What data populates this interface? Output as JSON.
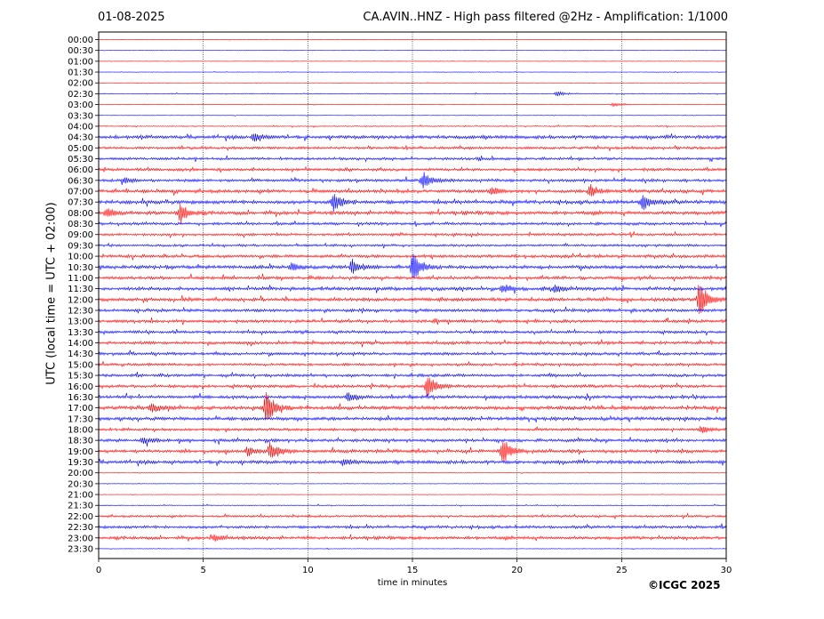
{
  "header": {
    "date": "01-08-2025",
    "station_title": "CA.AVIN..HNZ - High pass filtered @2Hz - Amplification: 1/1000"
  },
  "footer": {
    "copyright": "©ICGC 2025"
  },
  "chart_data": {
    "type": "line",
    "title": "CA.AVIN..HNZ - High pass filtered @2Hz - Amplification: 1/1000",
    "xlabel": "time in minutes",
    "ylabel": "UTC (local time = UTC + 02:00)",
    "xlim": [
      0,
      30
    ],
    "x_ticks": [
      0,
      5,
      10,
      15,
      20,
      25,
      30
    ],
    "vertical_grid": [
      5,
      10,
      15,
      20,
      25
    ],
    "trace_colors": [
      "#ff0000",
      "#0000ff"
    ],
    "rows": [
      "00:00",
      "00:30",
      "01:00",
      "01:30",
      "02:00",
      "02:30",
      "03:00",
      "03:30",
      "04:00",
      "04:30",
      "05:00",
      "05:30",
      "06:00",
      "06:30",
      "07:00",
      "07:30",
      "08:00",
      "08:30",
      "09:00",
      "09:30",
      "10:00",
      "10:30",
      "11:00",
      "11:30",
      "12:00",
      "12:30",
      "13:00",
      "13:30",
      "14:00",
      "14:30",
      "15:00",
      "15:30",
      "16:00",
      "16:30",
      "17:00",
      "17:30",
      "18:00",
      "18:30",
      "19:00",
      "19:30",
      "20:00",
      "20:30",
      "21:00",
      "21:30",
      "22:00",
      "22:30",
      "23:00",
      "23:30"
    ],
    "noise_level": [
      0.2,
      0.2,
      0.2,
      0.2,
      0.2,
      0.4,
      0.3,
      0.2,
      0.5,
      1.6,
      1.2,
      1.2,
      1.3,
      1.3,
      1.5,
      1.7,
      1.6,
      1.3,
      1.2,
      1.1,
      1.4,
      1.6,
      1.4,
      1.6,
      1.6,
      1.4,
      1.4,
      1.3,
      1.4,
      1.3,
      1.2,
      1.3,
      1.4,
      1.5,
      1.7,
      1.6,
      1.2,
      1.4,
      1.5,
      1.6,
      0.3,
      0.2,
      0.2,
      0.4,
      1.0,
      1.3,
      1.4,
      0.3
    ],
    "events": [
      {
        "row": "02:30",
        "minute": 21.9,
        "amplitude": 3
      },
      {
        "row": "03:00",
        "minute": 24.6,
        "amplitude": 2
      },
      {
        "row": "04:30",
        "minute": 7.4,
        "amplitude": 5
      },
      {
        "row": "06:30",
        "minute": 15.5,
        "amplitude": 10
      },
      {
        "row": "06:30",
        "minute": 1.2,
        "amplitude": 4
      },
      {
        "row": "07:00",
        "minute": 23.5,
        "amplitude": 7
      },
      {
        "row": "07:00",
        "minute": 18.8,
        "amplitude": 4
      },
      {
        "row": "07:30",
        "minute": 11.2,
        "amplitude": 12
      },
      {
        "row": "07:30",
        "minute": 26.0,
        "amplitude": 10
      },
      {
        "row": "08:00",
        "minute": 3.9,
        "amplitude": 10
      },
      {
        "row": "08:00",
        "minute": 0.4,
        "amplitude": 5
      },
      {
        "row": "10:30",
        "minute": 15.0,
        "amplitude": 18
      },
      {
        "row": "10:30",
        "minute": 12.1,
        "amplitude": 9
      },
      {
        "row": "10:30",
        "minute": 9.2,
        "amplitude": 4
      },
      {
        "row": "11:30",
        "minute": 19.3,
        "amplitude": 5
      },
      {
        "row": "11:30",
        "minute": 21.8,
        "amplitude": 4
      },
      {
        "row": "12:00",
        "minute": 28.7,
        "amplitude": 24
      },
      {
        "row": "16:00",
        "minute": 15.7,
        "amplitude": 16
      },
      {
        "row": "16:30",
        "minute": 11.9,
        "amplitude": 4
      },
      {
        "row": "17:00",
        "minute": 8.0,
        "amplitude": 20
      },
      {
        "row": "17:00",
        "minute": 2.5,
        "amplitude": 5
      },
      {
        "row": "19:00",
        "minute": 8.2,
        "amplitude": 11
      },
      {
        "row": "19:00",
        "minute": 19.3,
        "amplitude": 14
      },
      {
        "row": "19:00",
        "minute": 7.1,
        "amplitude": 5
      },
      {
        "row": "18:30",
        "minute": 2.1,
        "amplitude": 4
      },
      {
        "row": "19:30",
        "minute": 11.7,
        "amplitude": 4
      },
      {
        "row": "18:00",
        "minute": 28.8,
        "amplitude": 4
      },
      {
        "row": "23:00",
        "minute": 5.5,
        "amplitude": 4
      }
    ]
  }
}
